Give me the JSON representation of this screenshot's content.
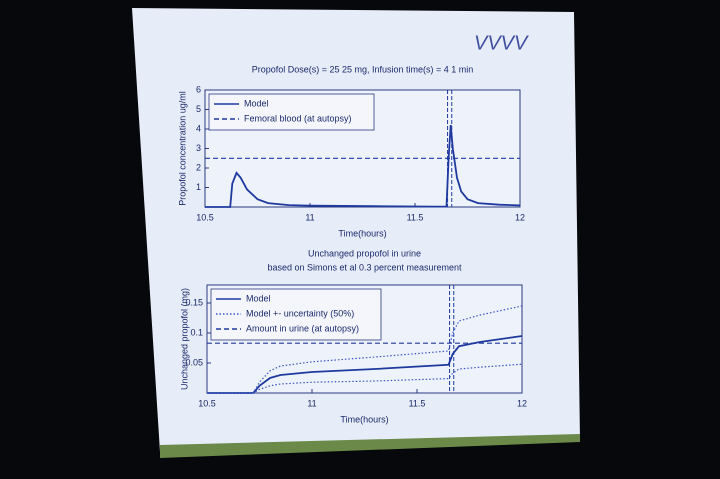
{
  "annotation": "VVVV",
  "chart_data": [
    {
      "type": "line",
      "title": "Propofol Dose(s) = 25 25 mg,  Infusion time(s) = 4 1 min",
      "xlabel": "Time(hours)",
      "ylabel": "Propofol concentration ug/ml",
      "xlim": [
        10.5,
        12
      ],
      "xticks": [
        10.5,
        11,
        11.5,
        12
      ],
      "ylim": [
        0,
        6
      ],
      "yticks": [
        1,
        2,
        3,
        4,
        5,
        6
      ],
      "vlines": [
        11.655,
        11.675
      ],
      "x": [
        10.5,
        10.62,
        10.63,
        10.65,
        10.67,
        10.7,
        10.75,
        10.8,
        10.9,
        11,
        11.3,
        11.6,
        11.65,
        11.66,
        11.67,
        11.68,
        11.7,
        11.72,
        11.75,
        11.8,
        11.9,
        12
      ],
      "series": [
        {
          "name": "Model",
          "color": "#1f3a9e",
          "style": "solid",
          "values": [
            0,
            0,
            1.2,
            1.75,
            1.5,
            0.9,
            0.4,
            0.2,
            0.1,
            0.07,
            0.04,
            0.02,
            0.02,
            2.5,
            4.2,
            3.0,
            1.5,
            0.8,
            0.4,
            0.2,
            0.12,
            0.08
          ]
        },
        {
          "name": "Femoral blood (at autopsy)",
          "color": "#1f3a9e",
          "style": "dashed",
          "x": [
            10.5,
            12
          ],
          "values": [
            2.5,
            2.5
          ]
        }
      ]
    },
    {
      "type": "line",
      "title": "Unchanged propofol in urine",
      "subtitle": "based on Simons et al 0.3 percent measurement",
      "xlabel": "Time(hours)",
      "ylabel": "Unchanged propofol (mg)",
      "xlim": [
        10.5,
        12
      ],
      "xticks": [
        10.5,
        11,
        11.5,
        12
      ],
      "ylim": [
        0,
        0.18
      ],
      "yticks": [
        0.05,
        0.1,
        0.15
      ],
      "vlines": [
        11.655,
        11.675
      ],
      "x": [
        10.5,
        10.72,
        10.75,
        10.8,
        10.85,
        11,
        11.3,
        11.65,
        11.67,
        11.7,
        11.8,
        12
      ],
      "series": [
        {
          "name": "Model",
          "color": "#1f3a9e",
          "style": "solid",
          "values": [
            0,
            0,
            0.012,
            0.025,
            0.03,
            0.035,
            0.04,
            0.047,
            0.065,
            0.078,
            0.085,
            0.095
          ]
        },
        {
          "name": "Model +- uncertainty (50%)",
          "color": "#3a55c0",
          "style": "dotted",
          "upper": [
            0,
            0,
            0.018,
            0.037,
            0.045,
            0.052,
            0.06,
            0.07,
            0.1,
            0.12,
            0.13,
            0.145
          ],
          "lower": [
            0,
            0,
            0.006,
            0.012,
            0.015,
            0.018,
            0.02,
            0.024,
            0.033,
            0.04,
            0.043,
            0.048
          ]
        },
        {
          "name": "Amount in urine (at autopsy)",
          "color": "#1f3a9e",
          "style": "dashed",
          "x": [
            10.5,
            12
          ],
          "values": [
            0.083,
            0.083
          ]
        }
      ]
    }
  ]
}
